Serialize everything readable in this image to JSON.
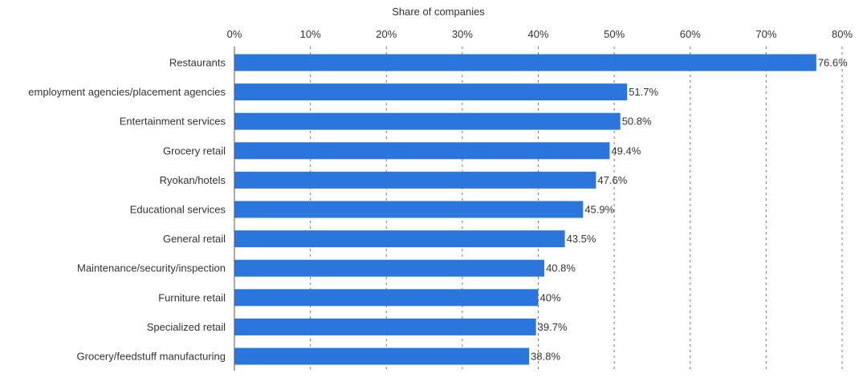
{
  "chart_data": {
    "type": "bar",
    "orientation": "horizontal",
    "title": "",
    "xlabel": "Share of companies",
    "ylabel": "",
    "xlim": [
      0,
      80
    ],
    "x_tick_values": [
      0,
      10,
      20,
      30,
      40,
      50,
      60,
      70,
      80
    ],
    "x_tick_labels": [
      "0%",
      "10%",
      "20%",
      "30%",
      "40%",
      "50%",
      "60%",
      "70%",
      "80%"
    ],
    "axis_position": "top",
    "grid": "vertical dashed",
    "categories": [
      "Restaurants",
      "employment agencies/placement agencies",
      "Entertainment services",
      "Grocery retail",
      "Ryokan/hotels",
      "Educational services",
      "General retail",
      "Maintenance/security/inspection",
      "Furniture retail",
      "Specialized retail",
      "Grocery/feedstuff manufacturing"
    ],
    "values": [
      76.6,
      51.7,
      50.8,
      49.4,
      47.6,
      45.9,
      43.5,
      40.8,
      40,
      39.7,
      38.8
    ],
    "value_labels": [
      "76.6%",
      "51.7%",
      "50.8%",
      "49.4%",
      "47.6%",
      "45.9%",
      "43.5%",
      "40.8%",
      "40%",
      "39.7%",
      "38.8%"
    ],
    "bar_color": "#2a76dd"
  }
}
